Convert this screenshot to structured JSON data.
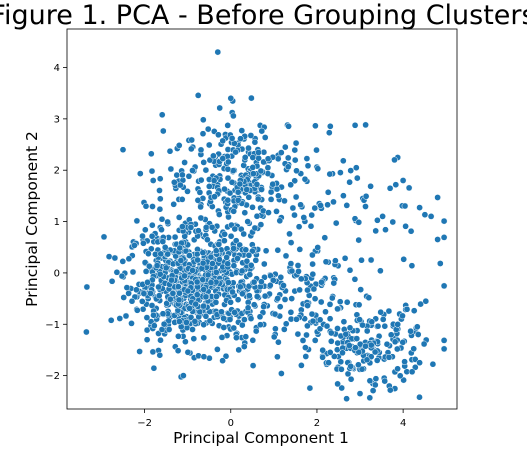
{
  "chart_data": {
    "type": "scatter",
    "title": "Figure 1. PCA - Before Grouping Clusters",
    "xlabel": "Principal Component 1",
    "ylabel": "Principal Component 2",
    "xlim": [
      -3.8,
      5.25
    ],
    "ylim": [
      -2.65,
      4.75
    ],
    "xticks": [
      -2,
      0,
      2,
      4
    ],
    "yticks": [
      -2,
      -1,
      0,
      1,
      2,
      3,
      4
    ],
    "xtick_labels": [
      "−2",
      "0",
      "2",
      "4"
    ],
    "ytick_labels": [
      "−2",
      "−1",
      "0",
      "1",
      "2",
      "3",
      "4"
    ],
    "grid": false,
    "legend": "none",
    "marker_color": "#1f77b4",
    "marker_edge_color": "#ffffff",
    "point_count_estimate": 1500,
    "clusters_approx": [
      {
        "center": [
          -0.9,
          -0.2
        ],
        "spread": [
          0.75,
          0.55
        ],
        "share": 0.52
      },
      {
        "center": [
          0.2,
          1.9
        ],
        "spread": [
          0.85,
          0.55
        ],
        "share": 0.2
      },
      {
        "center": [
          3.2,
          -1.45
        ],
        "spread": [
          0.65,
          0.4
        ],
        "share": 0.13
      },
      {
        "center": [
          1.3,
          -0.6
        ],
        "spread": [
          0.9,
          0.6
        ],
        "share": 0.1
      },
      {
        "center": [
          2.8,
          1.2
        ],
        "spread": [
          1.1,
          0.7
        ],
        "share": 0.05
      }
    ],
    "notable_points": [
      {
        "x": -0.3,
        "y": 4.3
      },
      {
        "x": -2.5,
        "y": 2.4
      },
      {
        "x": 0.0,
        "y": 3.4
      },
      {
        "x": -3.35,
        "y": -1.15
      },
      {
        "x": 4.8,
        "y": 0.65
      },
      {
        "x": 4.65,
        "y": 1.1
      },
      {
        "x": 3.8,
        "y": 2.2
      },
      {
        "x": 4.35,
        "y": -1.2
      },
      {
        "x": -1.1,
        "y": -2.0
      },
      {
        "x": 3.0,
        "y": -2.35
      },
      {
        "x": 4.0,
        "y": 1.8
      },
      {
        "x": -1.8,
        "y": 1.8
      }
    ]
  }
}
